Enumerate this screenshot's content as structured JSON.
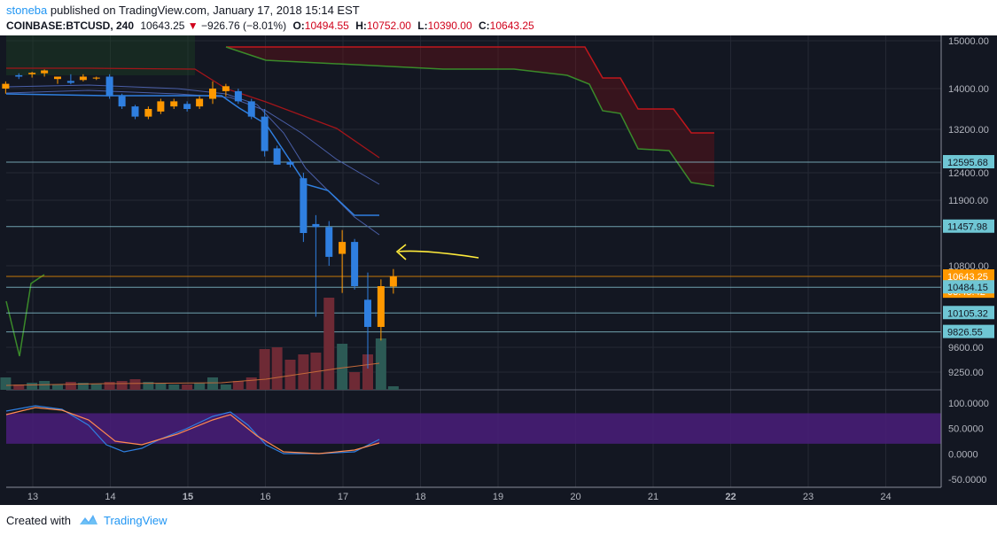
{
  "header": {
    "author": "stoneba",
    "published": "published on TradingView.com, January 17, 2018 15:14 EST",
    "symbol": "COINBASE:BTCUSD, 240",
    "last": "10643.25",
    "change": "−926.76 (−8.01%)",
    "o_label": "O:",
    "o_val": "10494.55",
    "h_label": "H:",
    "h_val": "10752.00",
    "l_label": "L:",
    "l_val": "10390.00",
    "c_label": "C:",
    "c_val": "10643.25"
  },
  "footer": {
    "created_with": "Created with",
    "brand": "TradingView"
  },
  "colors": {
    "background": "#131722",
    "up": "#ff9800",
    "down": "#2f7fe0",
    "cloud_red": "#c0171c",
    "cloud_green": "#3a8a2a",
    "rsi_band": "#4a1d7a",
    "label_bg": "#6fc6d4",
    "price_tag": "#ff9800",
    "annotation": "#ffeb3b"
  },
  "chart_data": {
    "type": "candlestick",
    "price_axis_ticks": [
      "15000.00",
      "14000.00",
      "13200.00",
      "12400.00",
      "11900.00",
      "10800.00",
      "9600.00",
      "9250.00"
    ],
    "price_labels": [
      {
        "text": "12595.68",
        "value": 12595.68,
        "kind": "level"
      },
      {
        "text": "11457.98",
        "value": 11457.98,
        "kind": "level"
      },
      {
        "text": "10643.25",
        "value": 10643.25,
        "kind": "last"
      },
      {
        "text": "03:45:42",
        "value": 10420,
        "kind": "timer"
      },
      {
        "text": "10484.15",
        "value": 10484.15,
        "kind": "level"
      },
      {
        "text": "10105.32",
        "value": 10105.32,
        "kind": "level"
      },
      {
        "text": "9826.55",
        "value": 9826.55,
        "kind": "level"
      }
    ],
    "oscillator_ticks": [
      "100.0000",
      "50.0000",
      "0.0000",
      "-50.0000"
    ],
    "x_ticks": [
      "13",
      "14",
      "15",
      "16",
      "17",
      "18",
      "19",
      "20",
      "21",
      "22",
      "23",
      "24"
    ],
    "x_tick_day": [
      13,
      14,
      15,
      16,
      17,
      18,
      19,
      20,
      21,
      22,
      23,
      24
    ],
    "candles": [
      {
        "t": 12.65,
        "o": 14000,
        "h": 14150,
        "l": 13900,
        "c": 14100
      },
      {
        "t": 12.82,
        "o": 14280,
        "h": 14320,
        "l": 14200,
        "c": 14250
      },
      {
        "t": 12.99,
        "o": 14300,
        "h": 14350,
        "l": 14230,
        "c": 14330
      },
      {
        "t": 13.15,
        "o": 14320,
        "h": 14400,
        "l": 14250,
        "c": 14380
      },
      {
        "t": 13.32,
        "o": 14200,
        "h": 14250,
        "l": 14100,
        "c": 14250
      },
      {
        "t": 13.49,
        "o": 14160,
        "h": 14300,
        "l": 14090,
        "c": 14120
      },
      {
        "t": 13.65,
        "o": 14180,
        "h": 14300,
        "l": 14150,
        "c": 14250
      },
      {
        "t": 13.82,
        "o": 14210,
        "h": 14250,
        "l": 14180,
        "c": 14230
      },
      {
        "t": 13.99,
        "o": 14250,
        "h": 14300,
        "l": 13800,
        "c": 13850
      },
      {
        "t": 14.15,
        "o": 13850,
        "h": 13900,
        "l": 13600,
        "c": 13650
      },
      {
        "t": 14.32,
        "o": 13650,
        "h": 13680,
        "l": 13400,
        "c": 13450
      },
      {
        "t": 14.49,
        "o": 13450,
        "h": 13650,
        "l": 13400,
        "c": 13600
      },
      {
        "t": 14.65,
        "o": 13550,
        "h": 13800,
        "l": 13500,
        "c": 13750
      },
      {
        "t": 14.82,
        "o": 13650,
        "h": 13800,
        "l": 13600,
        "c": 13750
      },
      {
        "t": 14.99,
        "o": 13700,
        "h": 13750,
        "l": 13550,
        "c": 13600
      },
      {
        "t": 15.15,
        "o": 13650,
        "h": 13850,
        "l": 13600,
        "c": 13800
      },
      {
        "t": 15.32,
        "o": 13800,
        "h": 14150,
        "l": 13700,
        "c": 14000
      },
      {
        "t": 15.49,
        "o": 13950,
        "h": 14100,
        "l": 13850,
        "c": 14050
      },
      {
        "t": 15.65,
        "o": 13950,
        "h": 14000,
        "l": 13700,
        "c": 13750
      },
      {
        "t": 15.82,
        "o": 13750,
        "h": 13800,
        "l": 13400,
        "c": 13450
      },
      {
        "t": 15.99,
        "o": 13450,
        "h": 13600,
        "l": 12700,
        "c": 12800
      },
      {
        "t": 16.15,
        "o": 12850,
        "h": 12900,
        "l": 12550,
        "c": 12550
      },
      {
        "t": 16.32,
        "o": 12600,
        "h": 12650,
        "l": 12500,
        "c": 12550
      },
      {
        "t": 16.49,
        "o": 12300,
        "h": 12400,
        "l": 11200,
        "c": 11350
      },
      {
        "t": 16.65,
        "o": 11500,
        "h": 11650,
        "l": 10050,
        "c": 11450
      },
      {
        "t": 16.82,
        "o": 11450,
        "h": 11550,
        "l": 10800,
        "c": 10950
      },
      {
        "t": 16.99,
        "o": 11000,
        "h": 11400,
        "l": 10400,
        "c": 11200
      },
      {
        "t": 17.15,
        "o": 11200,
        "h": 11250,
        "l": 10450,
        "c": 10500
      },
      {
        "t": 17.32,
        "o": 10300,
        "h": 10700,
        "l": 9300,
        "c": 9900
      },
      {
        "t": 17.49,
        "o": 9900,
        "h": 10600,
        "l": 9700,
        "c": 10500
      },
      {
        "t": 17.65,
        "o": 10494.55,
        "h": 10752,
        "l": 10390,
        "c": 10643.25
      }
    ]
  }
}
